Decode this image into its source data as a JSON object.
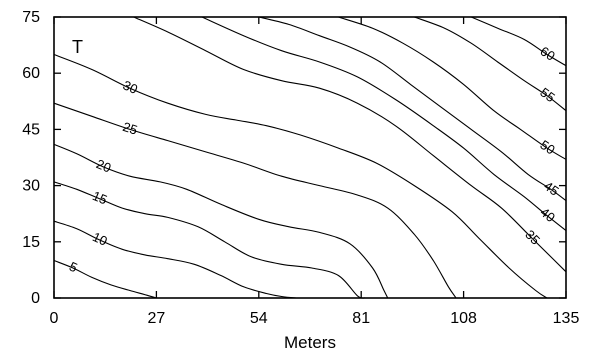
{
  "chart_data": {
    "type": "contour",
    "xlabel": "Meters",
    "ylabel": "",
    "corner_label": "T",
    "xlim": [
      0,
      135
    ],
    "ylim": [
      0,
      75
    ],
    "xticks": [
      0,
      27,
      54,
      81,
      108,
      135
    ],
    "yticks": [
      0,
      15,
      30,
      45,
      60,
      75
    ],
    "x_tick_labels": [
      "0",
      "27",
      "54",
      "81",
      "108",
      "135"
    ],
    "y_tick_labels": [
      "0",
      "15",
      "30",
      "45",
      "60",
      "75"
    ],
    "grid": false,
    "levels": [
      {
        "level": 5,
        "label": "5",
        "points": [
          [
            0,
            10
          ],
          [
            5,
            8
          ],
          [
            10,
            5.5
          ],
          [
            15,
            3.5
          ],
          [
            20,
            2
          ],
          [
            25,
            0.6
          ],
          [
            27,
            0
          ]
        ]
      },
      {
        "level": 10,
        "label": "10",
        "points": [
          [
            0,
            20.5
          ],
          [
            6,
            18.5
          ],
          [
            12,
            15.5
          ],
          [
            18,
            13
          ],
          [
            24,
            11.5
          ],
          [
            30,
            10.5
          ],
          [
            37,
            9
          ],
          [
            44,
            6
          ],
          [
            50,
            3
          ],
          [
            56,
            1.2
          ],
          [
            60,
            0.4
          ],
          [
            64,
            0
          ]
        ]
      },
      {
        "level": 15,
        "label": "15",
        "points": [
          [
            0,
            31
          ],
          [
            6,
            29
          ],
          [
            12,
            26.5
          ],
          [
            18,
            24
          ],
          [
            24,
            22.5
          ],
          [
            30,
            21.5
          ],
          [
            38,
            19
          ],
          [
            45,
            15
          ],
          [
            52,
            11
          ],
          [
            60,
            9
          ],
          [
            68,
            8
          ],
          [
            75,
            6
          ],
          [
            80,
            0.6
          ],
          [
            82,
            0
          ]
        ]
      },
      {
        "level": 20,
        "label": "20",
        "points": [
          [
            0,
            41
          ],
          [
            6,
            38.5
          ],
          [
            13,
            35
          ],
          [
            20,
            32.5
          ],
          [
            28,
            31
          ],
          [
            35,
            29
          ],
          [
            44,
            25
          ],
          [
            54,
            21
          ],
          [
            62,
            19
          ],
          [
            70,
            17.5
          ],
          [
            78,
            14.5
          ],
          [
            84,
            8
          ],
          [
            87,
            2
          ],
          [
            88,
            0
          ]
        ]
      },
      {
        "level": 25,
        "label": "25",
        "points": [
          [
            0,
            52
          ],
          [
            10,
            48.5
          ],
          [
            20,
            45
          ],
          [
            30,
            42
          ],
          [
            40,
            39
          ],
          [
            50,
            36
          ],
          [
            60,
            32.5
          ],
          [
            70,
            30
          ],
          [
            80,
            27.5
          ],
          [
            88,
            24
          ],
          [
            95,
            17
          ],
          [
            100,
            10
          ],
          [
            104,
            3
          ],
          [
            106,
            0
          ]
        ]
      },
      {
        "level": 30,
        "label": "30",
        "points": [
          [
            0,
            65
          ],
          [
            10,
            61
          ],
          [
            20,
            56
          ],
          [
            30,
            52
          ],
          [
            40,
            49
          ],
          [
            48,
            47.5
          ],
          [
            56,
            46
          ],
          [
            65,
            43.5
          ],
          [
            75,
            40
          ],
          [
            85,
            36
          ],
          [
            95,
            30
          ],
          [
            105,
            23
          ],
          [
            112,
            16
          ],
          [
            120,
            8
          ],
          [
            127,
            2
          ],
          [
            130,
            0
          ]
        ]
      },
      {
        "level": 35,
        "label": "35",
        "points": [
          [
            21,
            75
          ],
          [
            30,
            71
          ],
          [
            40,
            66
          ],
          [
            50,
            61
          ],
          [
            60,
            58
          ],
          [
            70,
            56
          ],
          [
            80,
            52
          ],
          [
            90,
            46
          ],
          [
            100,
            38
          ],
          [
            110,
            30
          ],
          [
            118,
            24
          ],
          [
            126,
            16
          ],
          [
            132,
            10
          ],
          [
            135,
            7
          ]
        ]
      },
      {
        "level": 40,
        "label": "40",
        "points": [
          [
            39,
            75
          ],
          [
            50,
            70
          ],
          [
            60,
            66
          ],
          [
            70,
            63
          ],
          [
            80,
            59
          ],
          [
            90,
            53
          ],
          [
            100,
            46
          ],
          [
            108,
            40
          ],
          [
            116,
            33
          ],
          [
            124,
            27
          ],
          [
            130,
            22
          ],
          [
            135,
            18
          ]
        ]
      },
      {
        "level": 45,
        "label": "45",
        "points": [
          [
            54,
            75
          ],
          [
            62,
            73
          ],
          [
            70,
            70
          ],
          [
            78,
            67
          ],
          [
            86,
            63
          ],
          [
            94,
            57
          ],
          [
            102,
            51
          ],
          [
            110,
            45
          ],
          [
            118,
            39
          ],
          [
            125,
            33
          ],
          [
            131,
            29
          ],
          [
            135,
            26
          ]
        ]
      },
      {
        "level": 50,
        "label": "50",
        "points": [
          [
            75,
            75
          ],
          [
            84,
            72
          ],
          [
            92,
            68
          ],
          [
            100,
            63
          ],
          [
            108,
            57
          ],
          [
            116,
            50
          ],
          [
            123,
            45
          ],
          [
            130,
            40
          ],
          [
            135,
            37
          ]
        ]
      },
      {
        "level": 55,
        "label": "55",
        "points": [
          [
            95,
            75
          ],
          [
            103,
            72
          ],
          [
            110,
            68
          ],
          [
            117,
            63
          ],
          [
            124,
            58
          ],
          [
            130,
            54
          ],
          [
            135,
            50
          ]
        ]
      },
      {
        "level": 60,
        "label": "60",
        "points": [
          [
            110,
            75
          ],
          [
            117,
            72
          ],
          [
            124,
            69
          ],
          [
            130,
            65
          ],
          [
            135,
            62
          ]
        ]
      }
    ]
  }
}
